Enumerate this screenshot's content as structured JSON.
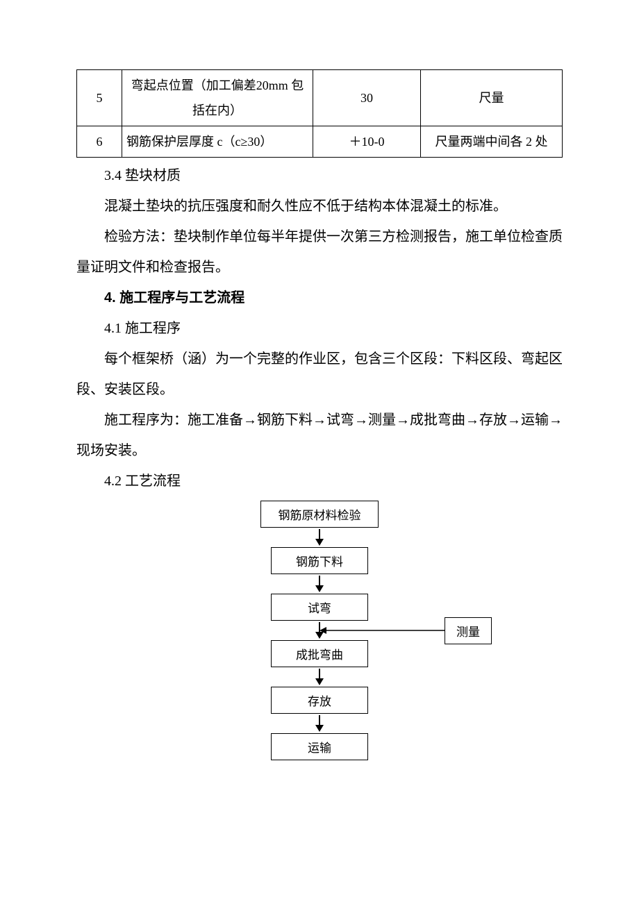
{
  "table": {
    "rows": [
      {
        "idx": "5",
        "item": "弯起点位置（加工偏差20mm 包括在内）",
        "tol": "30",
        "method": "尺量"
      },
      {
        "idx": "6",
        "item": "钢筋保护层厚度 c（c≥30）",
        "tol": "＋10-0",
        "method": "尺量两端中间各 2 处"
      }
    ]
  },
  "paras": {
    "p1": "3.4 垫块材质",
    "p2": "混凝土垫块的抗压强度和耐久性应不低于结构本体混凝土的标准。",
    "p3": "检验方法：垫块制作单位每半年提供一次第三方检测报告，施工单位检查质量证明文件和检查报告。",
    "h4": "4. 施工程序与工艺流程",
    "p4": "4.1 施工程序",
    "p5": "每个框架桥（涵）为一个完整的作业区，包含三个区段：下料区段、弯起区段、安装区段。",
    "p6": "施工程序为：施工准备→钢筋下料→试弯→测量→成批弯曲→存放→运输→现场安装。",
    "p7": "4.2 工艺流程"
  },
  "flow": {
    "steps": [
      "钢筋原材料检验",
      "钢筋下料",
      "试弯",
      "成批弯曲",
      "存放",
      "运输"
    ],
    "side": "测量",
    "box_border": "#000000",
    "line_color": "#000000",
    "fontsize": 17
  }
}
